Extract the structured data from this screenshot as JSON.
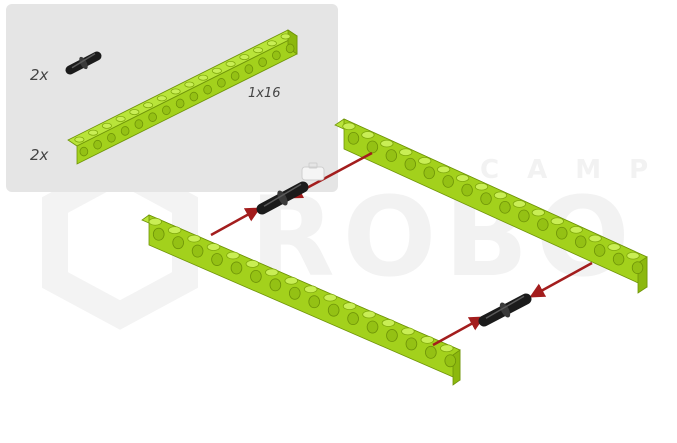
{
  "parts_list": {
    "connector_qty": "2x",
    "beam_qty": "2x",
    "beam_size": "1x16"
  },
  "watermark": {
    "subtitle": "CAMP",
    "title": "ROBO"
  },
  "colors": {
    "panel_bg": "#e5e5e5",
    "beam_top": "#b9e43a",
    "beam_front": "#a3d11c",
    "beam_side": "#8cb80e",
    "pin_black": "#1b1b1b",
    "arrow_red": "#a31d1d",
    "watermark": "#f2f2f2"
  },
  "icons": [
    "connector-pin-icon",
    "technic-beam-icon",
    "assembly-arrow-icon",
    "watermark-logo-icon"
  ]
}
